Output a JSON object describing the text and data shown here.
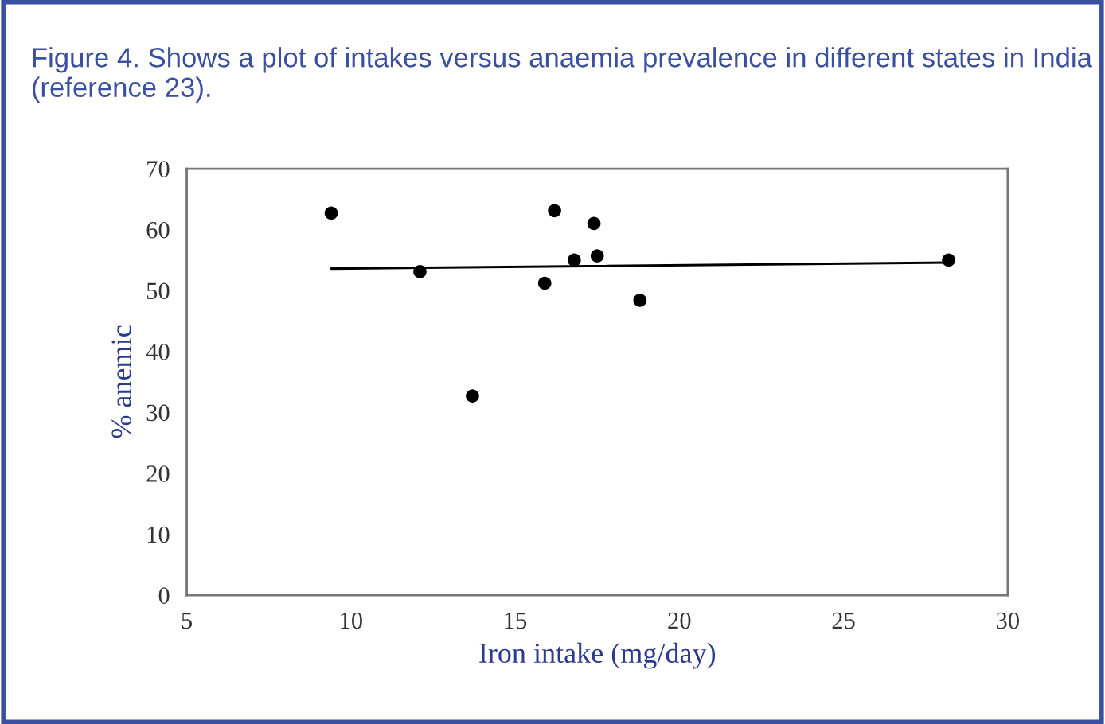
{
  "chart_data": {
    "type": "scatter",
    "title": "Figure 4. Shows a plot of intakes versus anaemia prevalence in different states in India (reference 23).",
    "xlabel": "Iron intake (mg/day)",
    "ylabel": "% anemic",
    "series": [
      {
        "color": "#000000",
        "marker": "circle",
        "x": [
          9.4,
          12.1,
          13.7,
          15.9,
          16.2,
          16.8,
          17.4,
          17.5,
          18.8,
          28.2
        ],
        "values": [
          62.7,
          53.1,
          32.7,
          51.2,
          63.1,
          55.0,
          61.0,
          55.7,
          48.4,
          55.0
        ]
      },
      {
        "type": "line",
        "color": "#000000",
        "x": [
          9.4,
          28.2
        ],
        "values": [
          53.6,
          54.6
        ]
      }
    ],
    "xlim": [
      5,
      30
    ],
    "xticks": [
      5,
      10,
      15,
      20,
      25,
      30
    ],
    "ylim": [
      0,
      70
    ],
    "yticks": [
      0,
      10,
      20,
      30,
      40,
      50,
      60,
      70
    ],
    "grid": false,
    "legend": false
  }
}
